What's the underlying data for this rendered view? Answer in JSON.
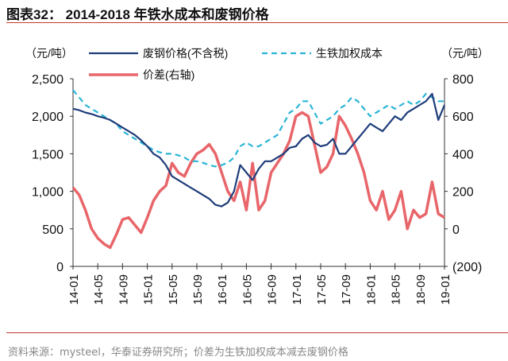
{
  "title": "图表32：  2014-2018 年铁水成本和废钢价格",
  "source": "资料来源：mysteel，华泰证券研究所；价差为生铁加权成本减去废钢价格",
  "chart_data": {
    "type": "line",
    "left_unit": "（元/吨）",
    "right_unit": "（元/吨）",
    "left_ylim": [
      0,
      2500
    ],
    "right_ylim": [
      -200,
      800
    ],
    "left_ticks": [
      "0",
      "500",
      "1,000",
      "1,500",
      "2,000",
      "2,500"
    ],
    "left_tick_values": [
      0,
      500,
      1000,
      1500,
      2000,
      2500
    ],
    "right_ticks": [
      "(200)",
      "0",
      "200",
      "400",
      "600",
      "800"
    ],
    "right_tick_values": [
      -200,
      0,
      200,
      400,
      600,
      800
    ],
    "x_ticks": [
      "14-01",
      "14-05",
      "14-09",
      "15-01",
      "15-05",
      "15-09",
      "16-01",
      "16-05",
      "16-09",
      "17-01",
      "17-05",
      "17-09",
      "18-01",
      "18-05",
      "18-09",
      "19-01"
    ],
    "legend_position": "top",
    "series": [
      {
        "name": "废钢价格(不含税)",
        "axis": "left",
        "color": "#1f3d7a",
        "style": "solid",
        "values": [
          2100,
          2080,
          2050,
          2030,
          2000,
          1980,
          1950,
          1900,
          1850,
          1800,
          1750,
          1680,
          1600,
          1500,
          1450,
          1350,
          1200,
          1150,
          1100,
          1050,
          1000,
          950,
          900,
          820,
          800,
          850,
          1000,
          1350,
          1250,
          1150,
          1300,
          1400,
          1400,
          1450,
          1500,
          1580,
          1600,
          1700,
          1750,
          1650,
          1600,
          1620,
          1700,
          1500,
          1500,
          1600,
          1700,
          1800,
          1900,
          1850,
          1800,
          1900,
          2000,
          1950,
          2050,
          2100,
          2150,
          2200,
          2300,
          1950,
          2150
        ]
      },
      {
        "name": "生铁加权成本",
        "axis": "left",
        "color": "#2bb5d6",
        "style": "dashed",
        "values": [
          2350,
          2250,
          2150,
          2100,
          2050,
          2000,
          1950,
          1900,
          1800,
          1750,
          1700,
          1650,
          1600,
          1550,
          1520,
          1500,
          1500,
          1480,
          1450,
          1400,
          1400,
          1380,
          1350,
          1330,
          1350,
          1380,
          1450,
          1600,
          1650,
          1600,
          1600,
          1650,
          1700,
          1750,
          1900,
          2050,
          2100,
          2200,
          2200,
          2050,
          1900,
          1950,
          2000,
          2100,
          2150,
          2250,
          2200,
          2100,
          2000,
          2050,
          2100,
          2150,
          2100,
          2150,
          2200,
          2150,
          2200,
          2300,
          2250,
          2200,
          2200
        ]
      },
      {
        "name": "价差(右轴)",
        "axis": "right",
        "color": "#e8666a",
        "style": "thick",
        "values": [
          220,
          180,
          100,
          0,
          -50,
          -80,
          -100,
          -30,
          50,
          60,
          20,
          -20,
          60,
          150,
          200,
          230,
          350,
          300,
          280,
          350,
          400,
          420,
          450,
          400,
          300,
          200,
          150,
          250,
          100,
          350,
          100,
          150,
          300,
          350,
          400,
          470,
          600,
          620,
          600,
          450,
          300,
          330,
          400,
          600,
          550,
          480,
          400,
          300,
          150,
          100,
          200,
          50,
          100,
          200,
          0,
          100,
          60,
          80,
          250,
          80,
          60
        ]
      }
    ]
  }
}
